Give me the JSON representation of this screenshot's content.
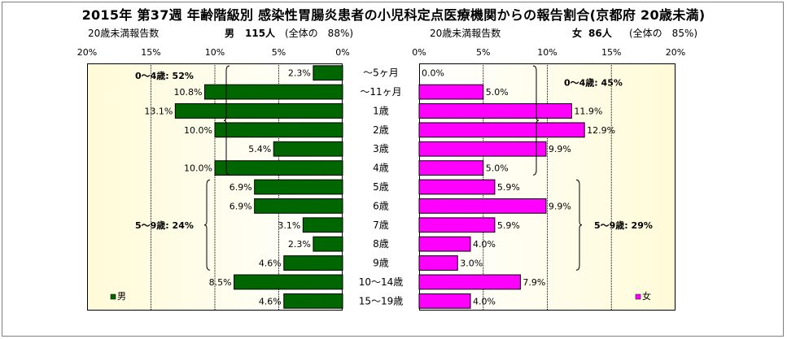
{
  "title": "2015年 第37週 年齢階級別 感染性胃腸炎患者の小児科定点医療機関からの報告割合(京都府 20歳未満)",
  "left_header": {
    "sub": "20歳未満報告数",
    "sex": "男",
    "count": "115人",
    "share": "(全体の　88%)"
  },
  "right_header": {
    "sub": "20歳未満報告数",
    "sex": "女",
    "count": "86人",
    "share": "(全体の　85%)"
  },
  "colors": {
    "male": "#006600",
    "female": "#ff00ff",
    "plot_bg_start": "#fffbd8",
    "plot_bg_end": "#ffffff"
  },
  "chart_data": [
    {
      "type": "bar",
      "orientation": "horizontal",
      "direction": "right-to-left",
      "categories": [
        "～5ヶ月",
        "～11ヶ月",
        "1歳",
        "2歳",
        "3歳",
        "4歳",
        "5歳",
        "6歳",
        "7歳",
        "8歳",
        "9歳",
        "10～14歳",
        "15～19歳"
      ],
      "series": [
        {
          "name": "男",
          "values": [
            2.3,
            10.8,
            13.1,
            10.0,
            5.4,
            10.0,
            6.9,
            6.9,
            3.1,
            2.3,
            4.6,
            8.5,
            4.6
          ],
          "labels": [
            "2.3%",
            "10.8%",
            "13.1%",
            "10.0%",
            "5.4%",
            "10.0%",
            "6.9%",
            "6.9%",
            "3.1%",
            "2.3%",
            "4.6%",
            "8.5%",
            "4.6%"
          ]
        }
      ],
      "xlim": [
        0,
        20
      ],
      "xticks": [
        "20%",
        "15%",
        "10%",
        "5%",
        "0%"
      ],
      "grid": true,
      "legend": "bottom-left",
      "annotations": [
        {
          "text": "0～4歳: 52%",
          "from_category": 0,
          "to_category": 5
        },
        {
          "text": "5～9歳: 24%",
          "from_category": 6,
          "to_category": 10
        }
      ]
    },
    {
      "type": "bar",
      "orientation": "horizontal",
      "direction": "left-to-right",
      "categories": [
        "～5ヶ月",
        "～11ヶ月",
        "1歳",
        "2歳",
        "3歳",
        "4歳",
        "5歳",
        "6歳",
        "7歳",
        "8歳",
        "9歳",
        "10～14歳",
        "15～19歳"
      ],
      "series": [
        {
          "name": "女",
          "values": [
            0.0,
            5.0,
            11.9,
            12.9,
            9.9,
            5.0,
            5.9,
            9.9,
            5.9,
            4.0,
            3.0,
            7.9,
            4.0
          ],
          "labels": [
            "0.0%",
            "5.0%",
            "11.9%",
            "12.9%",
            "9.9%",
            "5.0%",
            "5.9%",
            "9.9%",
            "5.9%",
            "4.0%",
            "3.0%",
            "7.9%",
            "4.0%"
          ]
        }
      ],
      "xlim": [
        0,
        20
      ],
      "xticks": [
        "0%",
        "5%",
        "10%",
        "15%",
        "20%"
      ],
      "grid": true,
      "legend": "bottom-right",
      "annotations": [
        {
          "text": "0～4歳: 45%",
          "from_category": 0,
          "to_category": 5
        },
        {
          "text": "5～9歳: 29%",
          "from_category": 6,
          "to_category": 10
        }
      ]
    }
  ]
}
